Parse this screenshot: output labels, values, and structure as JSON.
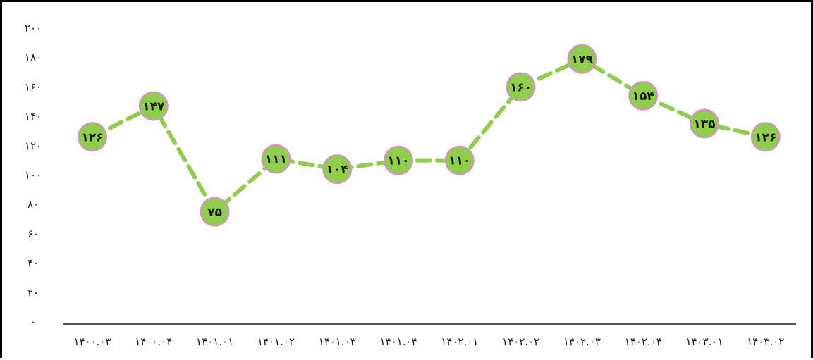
{
  "chart_data": {
    "type": "line",
    "title": "",
    "xlabel": "",
    "ylabel": "",
    "categories": [
      "۱۴۰۰.۰۳",
      "۱۴۰۰.۰۴",
      "۱۴۰۱.۰۱",
      "۱۴۰۱.۰۲",
      "۱۴۰۱.۰۳",
      "۱۴۰۱.۰۴",
      "۱۴۰۲.۰۱",
      "۱۴۰۲.۰۲",
      "۱۴۰۲.۰۳",
      "۱۴۰۲.۰۴",
      "۱۴۰۳.۰۱",
      "۱۴۰۳.۰۲"
    ],
    "series": [
      {
        "values": [
          126,
          147,
          75,
          111,
          104,
          110,
          110,
          160,
          179,
          154,
          135,
          126
        ],
        "labels": [
          "۱۲۶",
          "۱۴۷",
          "۷۵",
          "۱۱۱",
          "۱۰۴",
          "۱۱۰",
          "۱۱۰",
          "۱۶۰",
          "۱۷۹",
          "۱۵۴",
          "۱۳۵",
          "۱۲۶"
        ]
      }
    ],
    "ylim": [
      0,
      200
    ],
    "y_ticks": [
      0,
      20,
      40,
      60,
      80,
      100,
      120,
      140,
      160,
      180,
      200
    ],
    "y_tick_labels": [
      "۰",
      "۲۰",
      "۴۰",
      "۶۰",
      "۸۰",
      "۱۰۰",
      "۱۲۰",
      "۱۴۰",
      "۱۶۰",
      "۱۸۰",
      "۲۰۰"
    ],
    "grid": false,
    "legend": "none",
    "line_style": "dashed",
    "colors": {
      "line": "#8fce4a",
      "marker_fill": "#8fce4a",
      "marker_stroke": "#e08ad8",
      "axis": "#555555"
    }
  }
}
